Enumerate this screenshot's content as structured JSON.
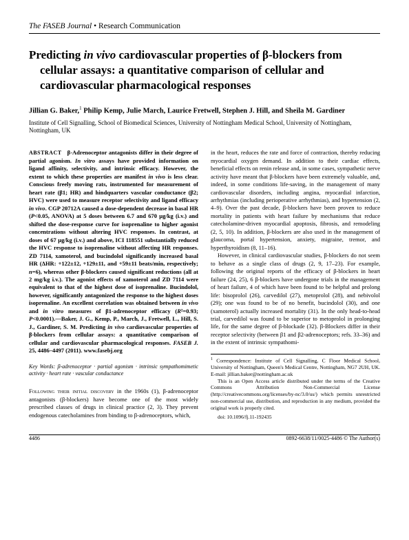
{
  "journal": {
    "name": "The FASEB Journal",
    "separator": "•",
    "sectionType": "Research Communication"
  },
  "title": "Predicting in vivo cardiovascular properties of β-blockers from cellular assays: a quantitative comparison of cellular and cardiovascular pharmacological responses",
  "authors": "Jillian G. Baker,¹ Philip Kemp, Julie March, Laurice Fretwell, Stephen J. Hill, and Sheila M. Gardiner",
  "affiliation": "Institute of Cell Signalling, School of Biomedical Sciences, University of Nottingham Medical School, University of Nottingham, Nottingham, UK",
  "abstract": {
    "label": "ABSTRACT",
    "text": "β-Adrenoceptor antagonists differ in their degree of partial agonism. In vitro assays have provided information on ligand affinity, selectivity, and intrinsic efficacy. However, the extent to which these properties are manifest in vivo is less clear. Conscious freely moving rats, instrumented for measurement of heart rate (β1; HR) and hindquarters vascular conductance (β2; HVC) were used to measure receptor selectivity and ligand efficacy in vivo. CGP 20712A caused a dose-dependent decrease in basal HR (P<0.05, ANOVA) at 5 doses between 6.7 and 670 µg/kg (i.v.) and shifted the dose-response curve for isoprenaline to higher agonist concentrations without altering HVC responses. In contrast, at doses of 67 µg/kg (i.v.) and above, ICI 118551 substantially reduced the HVC response to isoprenaline without affecting HR responses. ZD 7114, xamoterol, and bucindolol significantly increased basal HR (ΔHR: +122±12, +129±11, and +59±11 beats/min, respectively; n=6), whereas other β-blockers caused significant reductions (all at 2 mg/kg i.v.). The agonist effects of xamoterol and ZD 7114 were equivalent to that of the highest dose of isoprenaline. Bucindolol, however, significantly antagonized the response to the highest doses isoprenaline. An excellent correlation was obtained between in vivo and in vitro measures of β1-adrenoceptor efficacy (R²=0.93; P<0.0001).—Baker, J. G., Kemp, P., March, J., Fretwell, L., Hill, S. J., Gardiner, S. M. Predicting in vivo cardiovascular properties of β-blockers from cellular assays: a quantitative comparison of cellular and cardiovascular pharmacological responses. FASEB J. 25, 4486–4497 (2011). www.fasebj.org"
  },
  "keywords": {
    "label": "Key Words:",
    "text": "β-adrenoceptor · partial agonism · intrinsic sympathomimetic activity · heart rate · vascular conductance"
  },
  "body": {
    "leftIntro": "Following their initial discovery in the 1960s (1), β-adrenoceptor antagonists (β-blockers) have become one of the most widely prescribed classes of drugs in clinical practice (2, 3). They prevent endogenous catecholamines from binding to β-adrenoceptors, which,",
    "rightP1": "in the heart, reduces the rate and force of contraction, thereby reducing myocardial oxygen demand. In addition to their cardiac effects, beneficial effects on renin release and, in some cases, sympathetic nerve activity have meant that β-blockers have been extremely valuable, and, indeed, in some conditions life-saving, in the management of many cardiovascular disorders, including angina, myocardial infarction, arrhythmias (including perioperative arrhythmias), and hypertension (2, 4–9). Over the past decade, β-blockers have been proven to reduce mortality in patients with heart failure by mechanisms that reduce catecholamine-driven myocardial apoptosis, fibrosis, and remodeling (2, 5, 10). In addition, β-blockers are also used in the management of glaucoma, portal hypertension, anxiety, migraine, tremor, and hyperthyroidism (8, 11–16).",
    "rightP2": "However, in clinical cardiovascular studies, β-blockers do not seem to behave as a single class of drugs (2, 9, 17–23). For example, following the original reports of the efficacy of β-blockers in heart failure (24, 25), 6 β-blockers have undergone trials in the management of heart failure, 4 of which have been found to be helpful and prolong life: bisoprolol (26), carvedilol (27), metoprolol (28), and nebivolol (29); one was found to be of no benefit, bucindolol (30), and one (xamoterol) actually increased mortality (31). In the only head-to-head trial, carvedilol was found to be superior to metoprolol in prolonging life, for the same degree of β-blockade (32). β-Blockers differ in their receptor selectivity (between β1 and β2-adrenoceptors; refs. 33–36) and in the extent of intrinsic sympathomi-"
  },
  "footnote": {
    "correspondence": "¹ Correspondence: Institute of Cell Signalling, C Floor Medical School, University of Nottingham, Queen's Medical Centre, Nottingham, NG7 2UH, UK. E-mail: jillian.baker@nottingham.ac.uk",
    "license": "This is an Open Access article distributed under the terms of the Creative Commons Attribution Non-Commercial License (http://creativecommons.org/licenses/by-nc/3.0/us/) which permits unrestricted non-commercial use, distribution, and reproduction in any medium, provided the original work is properly cited.",
    "doi": "doi: 10.1096/fj.11-192435"
  },
  "footer": {
    "pageNum": "4486",
    "issn": "0892-6638/11/0025-4486 © The Author(s)"
  }
}
